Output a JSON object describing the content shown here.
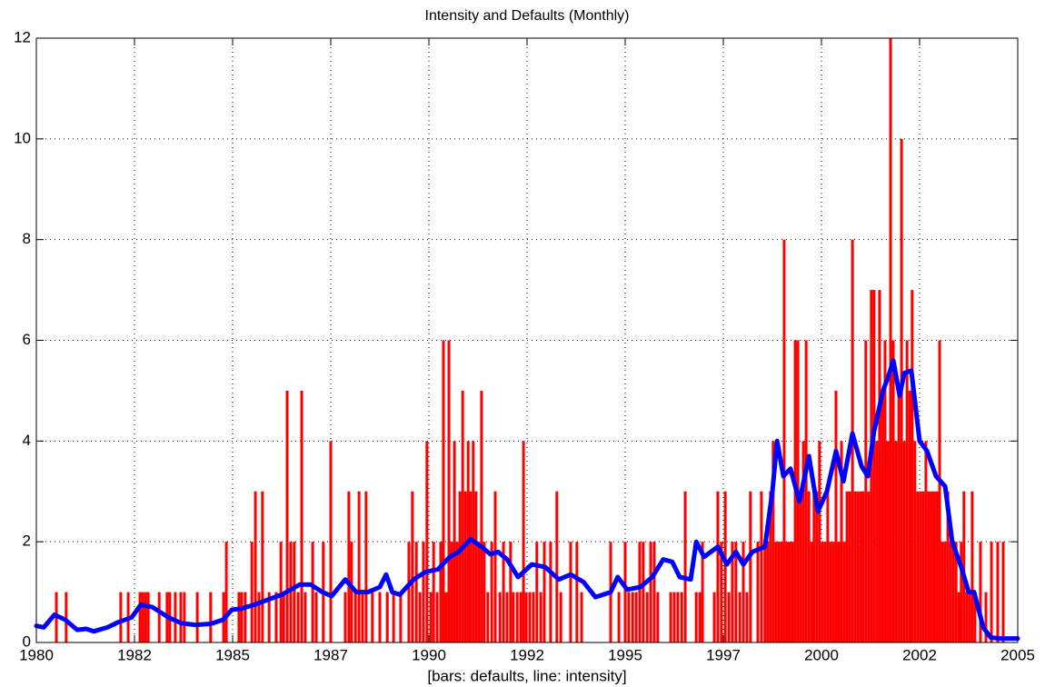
{
  "chart_data": {
    "type": "bar",
    "title": "Intensity and Defaults (Monthly)",
    "x_label": "[bars: defaults, line: intensity]",
    "xlim": [
      1980,
      2005
    ],
    "xticks": [
      1980,
      {
        "value": 1982.5,
        "label": "1982"
      },
      1985,
      {
        "value": 1987.5,
        "label": "1987"
      },
      1990,
      {
        "value": 1992.5,
        "label": "1992"
      },
      1995,
      {
        "value": 1997.5,
        "label": "1997"
      },
      2000,
      {
        "value": 2002.5,
        "label": "2002"
      },
      2005
    ],
    "ylim": [
      0,
      12
    ],
    "yticks": [
      0,
      2,
      4,
      6,
      8,
      10,
      12
    ],
    "grid": true,
    "series": [
      {
        "type": "bar",
        "color": "#ff0000",
        "x": [
          1980.51,
          1980.76,
          1982.15,
          1982.34,
          1982.64,
          1982.71,
          1982.78,
          1982.85,
          1983.13,
          1983.33,
          1983.4,
          1983.54,
          1983.68,
          1983.77,
          1984.1,
          1984.44,
          1984.77,
          1984.84,
          1985.16,
          1985.23,
          1985.32,
          1985.49,
          1985.58,
          1985.67,
          1985.76,
          1985.93,
          1986.11,
          1986.23,
          1986.3,
          1986.39,
          1986.48,
          1986.57,
          1986.67,
          1986.76,
          1986.85,
          1987.04,
          1987.13,
          1987.31,
          1987.5,
          1987.87,
          1987.96,
          1988.03,
          1988.13,
          1988.22,
          1988.31,
          1988.4,
          1988.56,
          1988.75,
          1988.94,
          1989.1,
          1989.28,
          1989.49,
          1989.58,
          1989.68,
          1989.77,
          1989.86,
          1989.95,
          1990.05,
          1990.12,
          1990.21,
          1990.3,
          1990.37,
          1990.44,
          1990.51,
          1990.58,
          1990.65,
          1990.72,
          1990.79,
          1990.86,
          1990.93,
          1991.0,
          1991.06,
          1991.13,
          1991.2,
          1991.27,
          1991.34,
          1991.41,
          1991.5,
          1991.6,
          1991.69,
          1991.81,
          1991.9,
          1991.99,
          1992.08,
          1992.15,
          1992.25,
          1992.34,
          1992.41,
          1992.48,
          1992.57,
          1992.66,
          1992.75,
          1992.85,
          1992.94,
          1993.1,
          1993.26,
          1993.36,
          1993.61,
          1993.77,
          1993.89,
          1994.63,
          1994.84,
          1995.0,
          1995.09,
          1995.19,
          1995.28,
          1995.37,
          1995.46,
          1995.56,
          1995.65,
          1995.74,
          1995.83,
          1996.16,
          1996.25,
          1996.34,
          1996.44,
          1996.53,
          1996.81,
          1996.9,
          1996.97,
          1997.27,
          1997.36,
          1997.45,
          1997.55,
          1997.64,
          1997.73,
          1997.82,
          1997.92,
          1998.01,
          1998.1,
          1998.19,
          1998.38,
          1998.47,
          1998.56,
          1998.63,
          1998.7,
          1998.77,
          1998.84,
          1998.91,
          1998.98,
          1999.05,
          1999.12,
          1999.19,
          1999.26,
          1999.33,
          1999.4,
          1999.47,
          1999.54,
          1999.61,
          1999.68,
          1999.75,
          1999.81,
          1999.88,
          1999.95,
          2000.02,
          2000.09,
          2000.16,
          2000.23,
          2000.3,
          2000.37,
          2000.44,
          2000.51,
          2000.58,
          2000.65,
          2000.72,
          2000.79,
          2000.86,
          2000.93,
          2001.0,
          2001.06,
          2001.13,
          2001.2,
          2001.27,
          2001.34,
          2001.41,
          2001.48,
          2001.55,
          2001.62,
          2001.69,
          2001.76,
          2001.83,
          2001.9,
          2001.97,
          2002.04,
          2002.11,
          2002.18,
          2002.25,
          2002.31,
          2002.38,
          2002.45,
          2002.52,
          2002.59,
          2002.66,
          2002.73,
          2002.8,
          2002.87,
          2002.94,
          2003.01,
          2003.08,
          2003.15,
          2003.22,
          2003.29,
          2003.36,
          2003.43,
          2003.5,
          2003.56,
          2003.63,
          2003.7,
          2003.77,
          2003.84,
          2003.91,
          2004.05,
          2004.19,
          2004.33,
          2004.49,
          2004.63
        ],
        "values": [
          1,
          1,
          1,
          1,
          1,
          1,
          1,
          1,
          1,
          1,
          1,
          1,
          1,
          1,
          1,
          1,
          1,
          2,
          1,
          1,
          1,
          2,
          3,
          1,
          3,
          1,
          1,
          2,
          1,
          5,
          2,
          2,
          1,
          5,
          1,
          2,
          1,
          2,
          4,
          1,
          3,
          2,
          1,
          3,
          1,
          3,
          1,
          1,
          1,
          1,
          1,
          2,
          3,
          2,
          1,
          2,
          4,
          1,
          2,
          1,
          2,
          6,
          1,
          6,
          2,
          4,
          2,
          3,
          5,
          3,
          4,
          3,
          4,
          3,
          2,
          5,
          2,
          1,
          2,
          3,
          1,
          2,
          1,
          2,
          1,
          1,
          1,
          4,
          1,
          1,
          1,
          2,
          1,
          2,
          2,
          3,
          1,
          2,
          2,
          1,
          2,
          1,
          2,
          1,
          1,
          1,
          2,
          2,
          1,
          2,
          2,
          1,
          1,
          1,
          1,
          1,
          3,
          1,
          1,
          2,
          1,
          3,
          2,
          3,
          1,
          2,
          2,
          1,
          2,
          1,
          3,
          2,
          3,
          2,
          2,
          3,
          4,
          2,
          2,
          2,
          8,
          2,
          2,
          2,
          6,
          6,
          3,
          4,
          6,
          3,
          2,
          3,
          3,
          4,
          2,
          2,
          3,
          2,
          2,
          5,
          2,
          4,
          2,
          3,
          3,
          8,
          3,
          3,
          3,
          3,
          6,
          3,
          7,
          7,
          4,
          7,
          5,
          6,
          4,
          12,
          6,
          4,
          5,
          10,
          4,
          6,
          5,
          7,
          4,
          3,
          3,
          3,
          4,
          3,
          3,
          3,
          3,
          6,
          2,
          2,
          3,
          2,
          2,
          2,
          1,
          2,
          3,
          1,
          1,
          3,
          1,
          2,
          1,
          2,
          2,
          2
        ]
      },
      {
        "type": "line",
        "color": "#0000ff",
        "x": [
          1980.0,
          1980.19,
          1980.46,
          1980.74,
          1981.04,
          1981.27,
          1981.46,
          1981.81,
          1982.08,
          1982.43,
          1982.66,
          1982.96,
          1983.36,
          1983.7,
          1984.05,
          1984.44,
          1984.75,
          1984.98,
          1985.21,
          1985.56,
          1985.9,
          1986.25,
          1986.71,
          1986.99,
          1987.29,
          1987.52,
          1987.87,
          1988.15,
          1988.45,
          1988.75,
          1988.91,
          1989.07,
          1989.26,
          1989.61,
          1989.91,
          1990.23,
          1990.53,
          1990.76,
          1991.06,
          1991.34,
          1991.57,
          1991.76,
          1991.99,
          1992.27,
          1992.62,
          1992.96,
          1993.31,
          1993.61,
          1993.94,
          1994.24,
          1994.63,
          1994.81,
          1995.05,
          1995.39,
          1995.69,
          1995.97,
          1996.2,
          1996.39,
          1996.67,
          1996.81,
          1997.01,
          1997.36,
          1997.59,
          1997.82,
          1998.01,
          1998.24,
          1998.56,
          1998.75,
          1998.87,
          1999.03,
          1999.21,
          1999.44,
          1999.68,
          1999.91,
          2000.14,
          2000.37,
          2000.56,
          2000.79,
          2001.02,
          2001.18,
          2001.34,
          2001.57,
          2001.71,
          2001.83,
          2001.99,
          2002.11,
          2002.29,
          2002.5,
          2002.69,
          2002.92,
          2003.15,
          2003.33,
          2003.56,
          2003.75,
          2003.89,
          2004.12,
          2004.31,
          2004.54,
          2005.0
        ],
        "values": [
          0.33,
          0.3,
          0.55,
          0.45,
          0.25,
          0.27,
          0.22,
          0.3,
          0.4,
          0.5,
          0.75,
          0.7,
          0.5,
          0.38,
          0.35,
          0.37,
          0.45,
          0.65,
          0.67,
          0.75,
          0.85,
          0.95,
          1.15,
          1.15,
          1.0,
          0.92,
          1.25,
          1.0,
          1.0,
          1.1,
          1.35,
          1.0,
          0.95,
          1.25,
          1.4,
          1.45,
          1.7,
          1.8,
          2.05,
          1.9,
          1.75,
          1.8,
          1.65,
          1.3,
          1.55,
          1.5,
          1.25,
          1.35,
          1.2,
          0.9,
          1.0,
          1.3,
          1.05,
          1.1,
          1.3,
          1.65,
          1.6,
          1.3,
          1.25,
          2.0,
          1.7,
          1.9,
          1.55,
          1.8,
          1.55,
          1.8,
          1.9,
          3.0,
          4.0,
          3.3,
          3.45,
          2.8,
          3.7,
          2.6,
          3.0,
          3.8,
          3.2,
          4.15,
          3.5,
          3.3,
          4.2,
          5.0,
          5.3,
          5.6,
          4.9,
          5.35,
          5.4,
          4.0,
          3.8,
          3.3,
          3.1,
          2.0,
          1.5,
          1.0,
          1.0,
          0.3,
          0.1,
          0.08,
          0.08
        ]
      }
    ]
  }
}
